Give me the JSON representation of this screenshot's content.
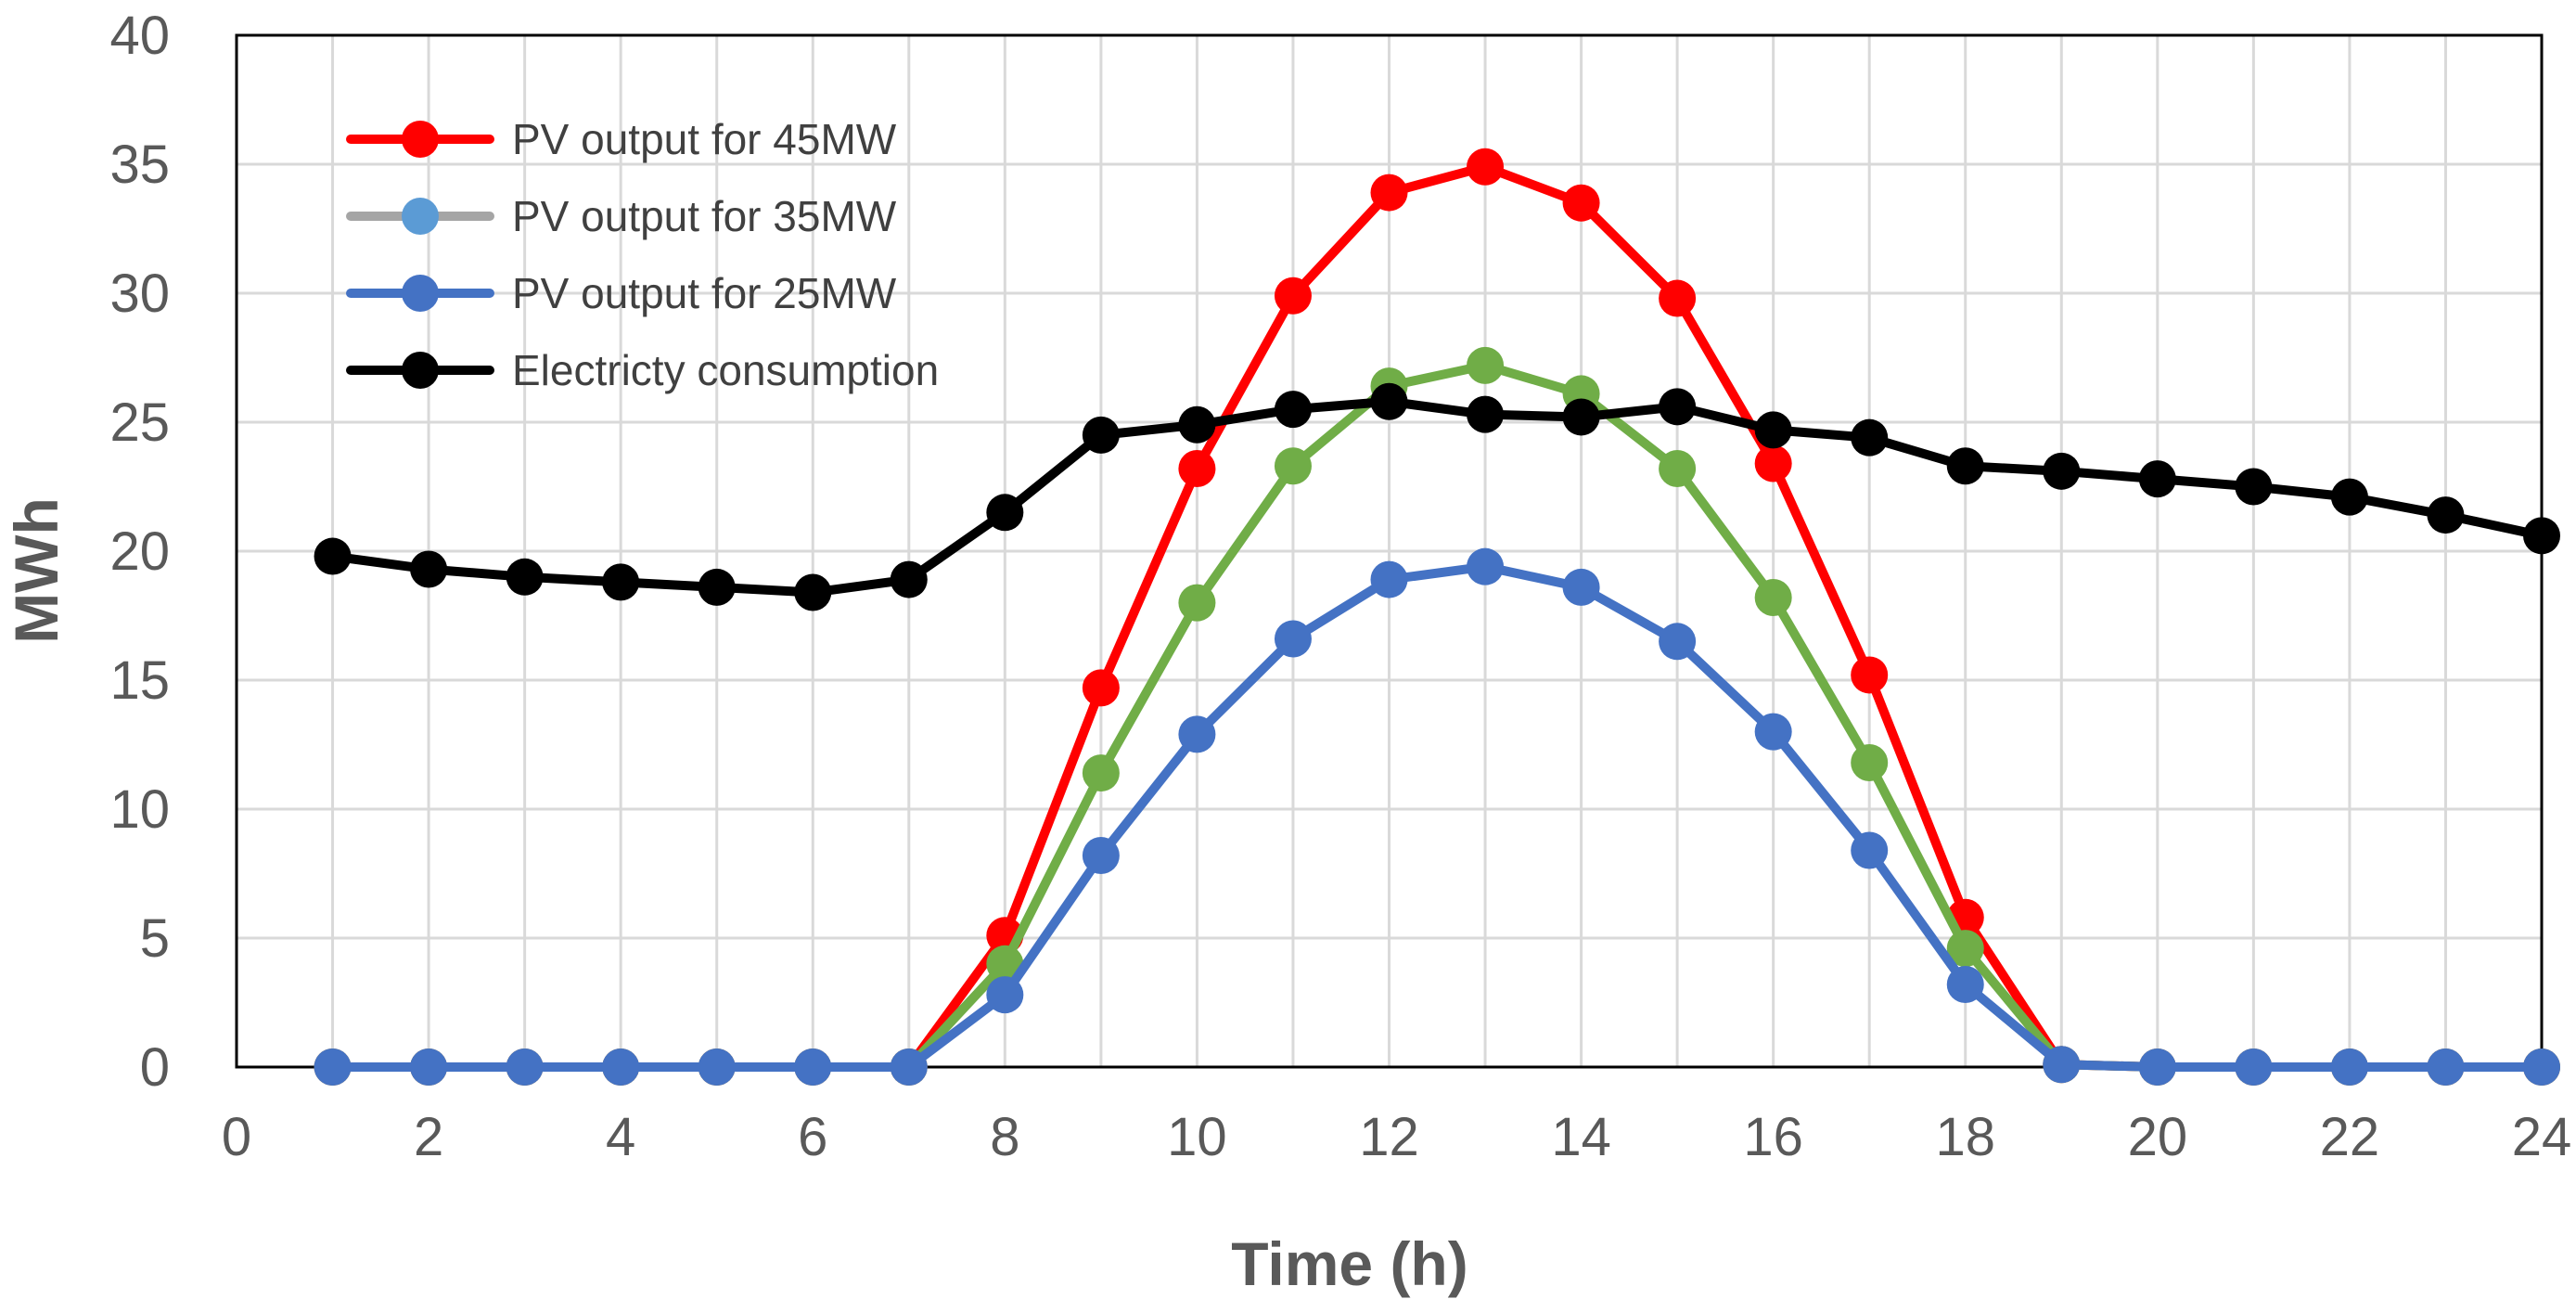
{
  "chart_data": {
    "type": "line",
    "title": "",
    "xlabel": "Time (h)",
    "ylabel": "MWh",
    "xlim": [
      0,
      24
    ],
    "ylim": [
      0,
      40
    ],
    "x_ticks": [
      0,
      2,
      4,
      6,
      8,
      10,
      12,
      14,
      16,
      18,
      20,
      22,
      24
    ],
    "y_ticks": [
      0,
      5,
      10,
      15,
      20,
      25,
      30,
      35,
      40
    ],
    "grid": true,
    "legend_position": "top-left",
    "x": [
      1,
      2,
      3,
      4,
      5,
      6,
      7,
      8,
      9,
      10,
      11,
      12,
      13,
      14,
      15,
      16,
      17,
      18,
      19,
      20,
      21,
      22,
      23,
      24
    ],
    "series": [
      {
        "name": "PV output for 45MW",
        "color": "#ff0000",
        "marker_color": "#ff0000",
        "values": [
          0,
          0,
          0,
          0,
          0,
          0,
          0,
          5.1,
          14.7,
          23.2,
          29.9,
          33.9,
          34.9,
          33.5,
          29.8,
          23.4,
          15.2,
          5.8,
          0.1,
          0,
          0,
          0,
          0,
          0
        ]
      },
      {
        "name": "PV output for 35MW",
        "color": "#70ad47",
        "marker_color": "#70ad47",
        "legend_line_color": "#a5a5a5",
        "legend_marker_color": "#5b9bd5",
        "values": [
          0,
          0,
          0,
          0,
          0,
          0,
          0,
          4.0,
          11.4,
          18.0,
          23.3,
          26.4,
          27.2,
          26.1,
          23.2,
          18.2,
          11.8,
          4.6,
          0.1,
          0,
          0,
          0,
          0,
          0
        ]
      },
      {
        "name": "PV output for 25MW",
        "color": "#4472c4",
        "marker_color": "#4472c4",
        "values": [
          0,
          0,
          0,
          0,
          0,
          0,
          0,
          2.8,
          8.2,
          12.9,
          16.6,
          18.9,
          19.4,
          18.6,
          16.5,
          13.0,
          8.4,
          3.2,
          0.1,
          0,
          0,
          0,
          0,
          0
        ]
      },
      {
        "name": "Electricty consumption",
        "color": "#000000",
        "marker_color": "#000000",
        "values": [
          19.8,
          19.3,
          19.0,
          18.8,
          18.6,
          18.4,
          18.9,
          21.5,
          24.5,
          24.9,
          25.5,
          25.8,
          25.3,
          25.2,
          25.6,
          24.7,
          24.4,
          23.3,
          23.1,
          22.8,
          22.5,
          22.1,
          21.4,
          20.6
        ]
      }
    ]
  }
}
